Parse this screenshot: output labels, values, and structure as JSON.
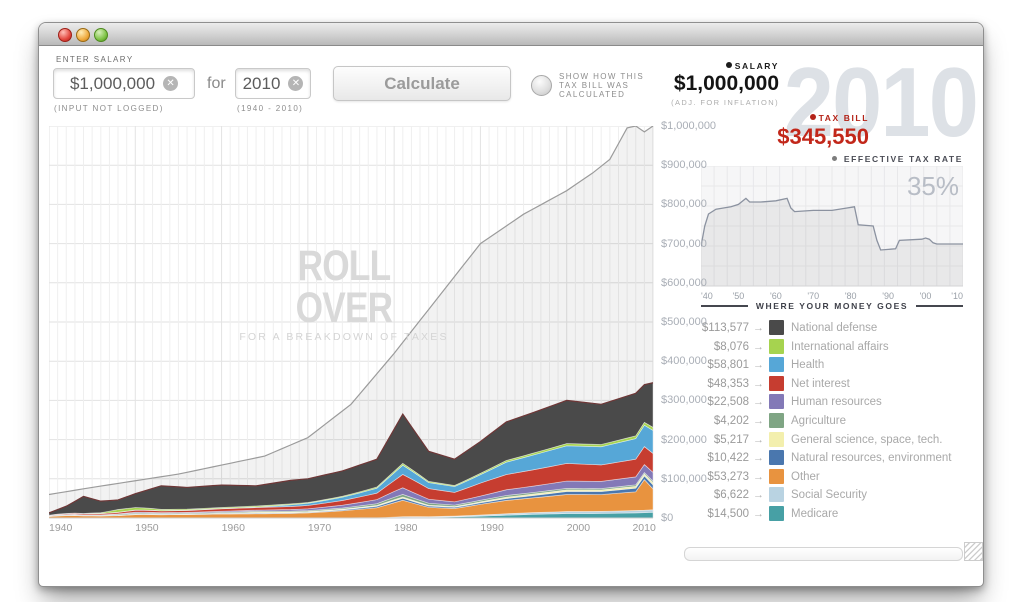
{
  "window": {
    "title": ""
  },
  "controls": {
    "enter_salary_label": "ENTER SALARY",
    "salary_value": "$1,000,000",
    "input_not_logged": "(INPUT NOT LOGGED)",
    "for_label": "for",
    "year_value": "2010",
    "year_range": "(1940 - 2010)",
    "calculate_label": "Calculate",
    "clear_icon": "✕",
    "radio_line1": "SHOW HOW THIS",
    "radio_line2": "TAX BILL WAS",
    "radio_line3": "CALCULATED"
  },
  "summary": {
    "salary_label": "SALARY",
    "salary_amount": "$1,000,000",
    "salary_caption": "(ADJ. FOR INFLATION)",
    "taxbill_label": "TAX BILL",
    "taxbill_amount": "$345,550",
    "year_watermark": "2010",
    "salary_color": "#1c1c1c",
    "taxbill_color": "#b42318"
  },
  "effective_rate": {
    "label": "EFFECTIVE TAX RATE",
    "value": "35%",
    "x_labels": [
      "'40",
      "'50",
      "'60",
      "'70",
      "'80",
      "'90",
      "'00",
      "'10"
    ]
  },
  "main_chart_watermark": {
    "line1": "ROLL OVER",
    "line2": "FOR A BREAKDOWN OF TAXES"
  },
  "money_list": {
    "header": "WHERE YOUR MONEY GOES",
    "arrow": "→",
    "items": [
      {
        "amount": "$113,577",
        "label": "National defense",
        "color": "#4a4a4a"
      },
      {
        "amount": "$8,076",
        "label": "International affairs",
        "color": "#a6d34f"
      },
      {
        "amount": "$58,801",
        "label": "Health",
        "color": "#56a7d7"
      },
      {
        "amount": "$48,353",
        "label": "Net interest",
        "color": "#c63d30"
      },
      {
        "amount": "$22,508",
        "label": "Human resources",
        "color": "#8379b7"
      },
      {
        "amount": "$4,202",
        "label": "Agriculture",
        "color": "#7fa584"
      },
      {
        "amount": "$5,217",
        "label": "General science, space, tech.",
        "color": "#f3efad"
      },
      {
        "amount": "$10,422",
        "label": "Natural resources, environment",
        "color": "#4a77ae"
      },
      {
        "amount": "$53,273",
        "label": "Other",
        "color": "#e8933f"
      },
      {
        "amount": "$6,622",
        "label": "Social Security",
        "color": "#b9d3e2"
      },
      {
        "amount": "$14,500",
        "label": "Medicare",
        "color": "#47a0a5"
      }
    ]
  },
  "chart_data": [
    {
      "type": "area",
      "title": "Tax bill breakdown on an inflation-adjusted $1,000,000 salary, stacked by category",
      "x_range": [
        1940,
        2010
      ],
      "ylim": [
        0,
        1000000
      ],
      "y_ticks": [
        "$1,000,000",
        "$900,000",
        "$800,000",
        "$700,000",
        "$600,000",
        "$500,000",
        "$400,000",
        "$300,000",
        "$200,000",
        "$100,000",
        "$0"
      ],
      "x_ticks": [
        "1940",
        "1950",
        "1960",
        "1970",
        "1980",
        "1990",
        "2000",
        "2010"
      ],
      "knot_years": [
        1940,
        1942,
        1944,
        1946,
        1948,
        1950,
        1953,
        1956,
        1960,
        1964,
        1968,
        1970,
        1974,
        1978,
        1981,
        1984,
        1987,
        1990,
        1993,
        1996,
        2000,
        2004,
        2008,
        2009,
        2010
      ],
      "total_tax_thousands": [
        13,
        30,
        55,
        43,
        46,
        62,
        82,
        78,
        84,
        82,
        96,
        100,
        120,
        150,
        265,
        170,
        150,
        195,
        245,
        268,
        300,
        290,
        318,
        340,
        345
      ],
      "series_bottom_to_top": [
        {
          "name": "Medicare",
          "color": "#47a0a5",
          "fractions": [
            0,
            0,
            0,
            0,
            0,
            0,
            0,
            0,
            0,
            0,
            0,
            0,
            0,
            0,
            0.005,
            0.01,
            0.02,
            0.025,
            0.03,
            0.035,
            0.038,
            0.04,
            0.041,
            0.04,
            0.042
          ]
        },
        {
          "name": "Social Security",
          "color": "#b9d3e2",
          "fractions": [
            0,
            0,
            0,
            0,
            0,
            0,
            0,
            0,
            0,
            0,
            0,
            0,
            0.004,
            0.005,
            0.008,
            0.01,
            0.012,
            0.014,
            0.015,
            0.016,
            0.017,
            0.018,
            0.019,
            0.018,
            0.019
          ]
        },
        {
          "name": "Other",
          "color": "#e8933f",
          "fractions": [
            0.3,
            0.2,
            0.1,
            0.12,
            0.13,
            0.14,
            0.1,
            0.11,
            0.12,
            0.13,
            0.12,
            0.13,
            0.15,
            0.17,
            0.16,
            0.14,
            0.13,
            0.14,
            0.14,
            0.14,
            0.145,
            0.148,
            0.15,
            0.23,
            0.154
          ]
        },
        {
          "name": "Natural resources, environment",
          "color": "#4a77ae",
          "fractions": [
            0.02,
            0.015,
            0.01,
            0.01,
            0.015,
            0.02,
            0.015,
            0.015,
            0.015,
            0.02,
            0.015,
            0.015,
            0.02,
            0.025,
            0.02,
            0.02,
            0.02,
            0.02,
            0.02,
            0.022,
            0.025,
            0.027,
            0.029,
            0.028,
            0.03
          ]
        },
        {
          "name": "General science, space, tech.",
          "color": "#f3efad",
          "fractions": [
            0,
            0,
            0,
            0,
            0.005,
            0.005,
            0.005,
            0.005,
            0.01,
            0.03,
            0.025,
            0.02,
            0.015,
            0.015,
            0.012,
            0.012,
            0.013,
            0.013,
            0.014,
            0.014,
            0.014,
            0.014,
            0.015,
            0.014,
            0.015
          ]
        },
        {
          "name": "Agriculture",
          "color": "#7fa584",
          "fractions": [
            0.08,
            0.05,
            0.02,
            0.03,
            0.05,
            0.04,
            0.025,
            0.03,
            0.03,
            0.03,
            0.025,
            0.025,
            0.025,
            0.03,
            0.025,
            0.03,
            0.025,
            0.02,
            0.018,
            0.015,
            0.013,
            0.012,
            0.012,
            0.011,
            0.012
          ]
        },
        {
          "name": "Human resources",
          "color": "#8379b7",
          "fractions": [
            0.04,
            0.03,
            0.02,
            0.03,
            0.03,
            0.035,
            0.02,
            0.025,
            0.03,
            0.035,
            0.04,
            0.045,
            0.06,
            0.07,
            0.065,
            0.06,
            0.055,
            0.055,
            0.06,
            0.06,
            0.062,
            0.063,
            0.064,
            0.06,
            0.065
          ]
        },
        {
          "name": "Net interest",
          "color": "#c63d30",
          "fractions": [
            0.09,
            0.07,
            0.05,
            0.07,
            0.08,
            0.08,
            0.055,
            0.06,
            0.075,
            0.08,
            0.08,
            0.085,
            0.1,
            0.11,
            0.13,
            0.16,
            0.16,
            0.17,
            0.16,
            0.155,
            0.15,
            0.145,
            0.142,
            0.135,
            0.14
          ]
        },
        {
          "name": "Health",
          "color": "#56a7d7",
          "fractions": [
            0.01,
            0.01,
            0.005,
            0.005,
            0.01,
            0.01,
            0.005,
            0.01,
            0.01,
            0.015,
            0.045,
            0.055,
            0.07,
            0.085,
            0.09,
            0.09,
            0.1,
            0.11,
            0.13,
            0.14,
            0.15,
            0.16,
            0.165,
            0.16,
            0.17
          ]
        },
        {
          "name": "International affairs",
          "color": "#a6d34f",
          "fractions": [
            0.01,
            0.01,
            0.005,
            0.045,
            0.15,
            0.1,
            0.04,
            0.035,
            0.03,
            0.035,
            0.025,
            0.02,
            0.02,
            0.02,
            0.018,
            0.018,
            0.018,
            0.018,
            0.018,
            0.018,
            0.019,
            0.02,
            0.022,
            0.022,
            0.023
          ]
        },
        {
          "name": "National defense",
          "color": "#4a4a4a",
          "top_edge_color": "#6e3636",
          "fractions": [
            0.45,
            0.615,
            0.79,
            0.69,
            0.53,
            0.57,
            0.725,
            0.71,
            0.68,
            0.625,
            0.625,
            0.605,
            0.54,
            0.475,
            0.48,
            0.45,
            0.447,
            0.415,
            0.405,
            0.385,
            0.367,
            0.353,
            0.341,
            0.282,
            0.329
          ]
        }
      ],
      "salary_line": {
        "name": "Salary (adj. for inflation)",
        "color": "#9b9b9b",
        "fill": "rgba(0,0,0,0.05)",
        "years": [
          1940,
          1945,
          1950,
          1955,
          1960,
          1965,
          1970,
          1975,
          1980,
          1985,
          1990,
          1995,
          2000,
          2003,
          2005,
          2007,
          2008,
          2009,
          2010
        ],
        "values_thousands": [
          60,
          78,
          95,
          112,
          135,
          158,
          205,
          290,
          420,
          560,
          700,
          775,
          835,
          880,
          915,
          995,
          1000,
          985,
          1000
        ]
      }
    },
    {
      "type": "area",
      "title": "Effective tax rate",
      "x_range": [
        1940,
        2010
      ],
      "ylim": [
        0,
        100
      ],
      "final_value_label": "35%",
      "years": [
        1940,
        1941,
        1942,
        1944,
        1946,
        1948,
        1950,
        1952,
        1953,
        1956,
        1960,
        1963,
        1964,
        1965,
        1970,
        1975,
        1979,
        1981,
        1982,
        1986,
        1987,
        1988,
        1992,
        1993,
        1999,
        2000,
        2001,
        2002,
        2003,
        2010
      ],
      "rates_percent": [
        33,
        50,
        60,
        64,
        65,
        66,
        68,
        73,
        70,
        70,
        71,
        73,
        65,
        62,
        63,
        63,
        65,
        66,
        51,
        50,
        38,
        30,
        31,
        38,
        39,
        40,
        39,
        36,
        35,
        35
      ],
      "line_color": "#8b92a0",
      "fill_color": "rgba(0,0,0,0.055)"
    }
  ]
}
